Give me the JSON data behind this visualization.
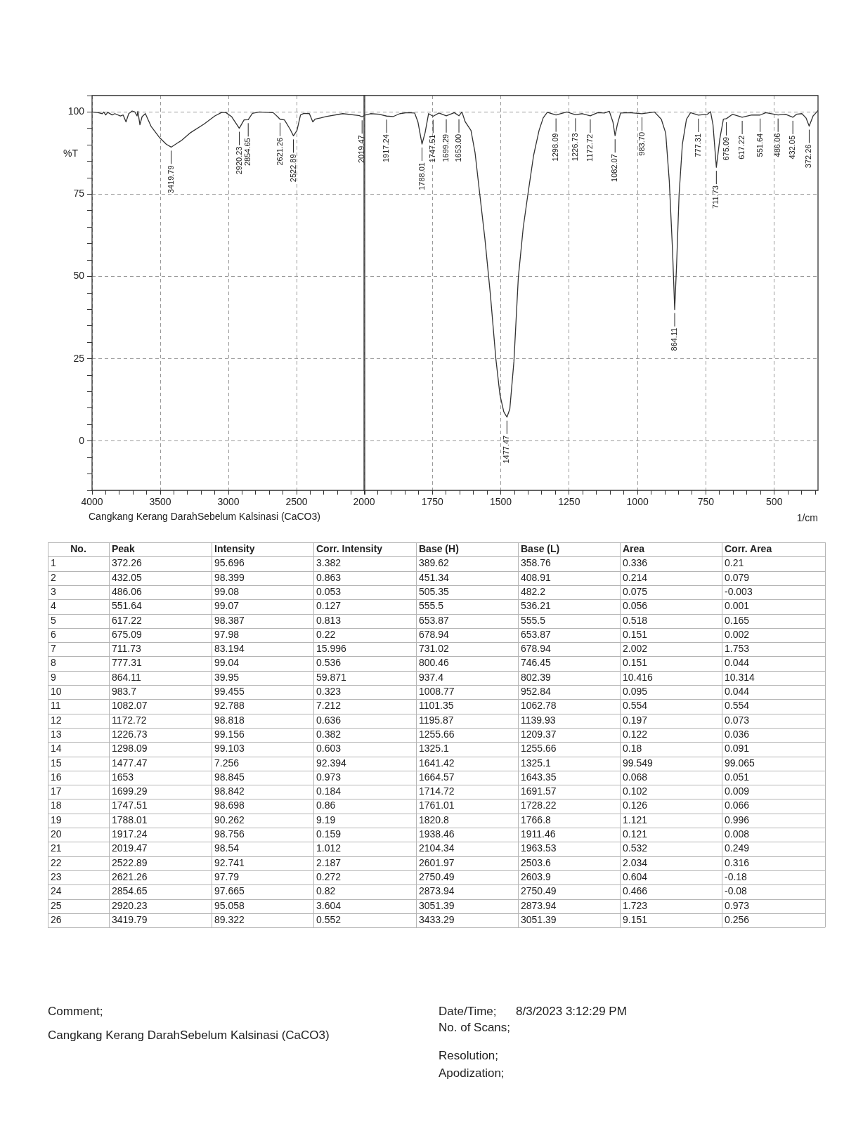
{
  "chart_data": [
    {
      "type": "line",
      "ylabel": "%T",
      "color": "#333333",
      "grid": true,
      "x": [
        4000,
        3955,
        3925,
        3914,
        3900,
        3884,
        3853,
        3833,
        3792,
        3772,
        3751,
        3731,
        3706,
        3686,
        3670,
        3664,
        3649,
        3633,
        3609,
        3568,
        3507,
        3456,
        3419.79,
        3343,
        3282,
        3180,
        3099,
        3048,
        3017,
        2977,
        2920.23,
        2885,
        2854.65,
        2824,
        2773,
        2671,
        2640,
        2621.26,
        2589,
        2548,
        2522.89,
        2497,
        2471,
        2446,
        2406,
        2381,
        2365,
        2349,
        2324,
        2283,
        2161,
        2039,
        2019.47,
        2000
      ],
      "values": [
        100,
        99.8,
        99.5,
        100,
        99.1,
        99.9,
        99.1,
        99.5,
        98.8,
        99.1,
        97,
        99.5,
        100.3,
        100,
        98.8,
        100.2,
        96.1,
        98.6,
        99.5,
        95.7,
        92.3,
        90.2,
        89.322,
        91.4,
        93.6,
        96.3,
        98.8,
        99.9,
        99.8,
        98.6,
        95.058,
        97.6,
        97.665,
        99.6,
        100,
        99.8,
        98.6,
        97.79,
        97.6,
        94.8,
        92.741,
        94.4,
        99.1,
        99.6,
        99.5,
        97,
        97.8,
        98,
        98.2,
        98.6,
        99.5,
        98.9,
        98.54,
        99
      ],
      "xlim": [
        4000,
        2000
      ],
      "xticks": [
        4000,
        {
          "value": 3900,
          "label": null
        },
        {
          "value": 3800,
          "label": null
        },
        {
          "value": 3700,
          "label": null
        },
        {
          "value": 3600,
          "label": null
        },
        3500,
        {
          "value": 3400,
          "label": null
        },
        {
          "value": 3300,
          "label": null
        },
        {
          "value": 3200,
          "label": null
        },
        {
          "value": 3100,
          "label": null
        },
        3000,
        {
          "value": 2900,
          "label": null
        },
        {
          "value": 2800,
          "label": null
        },
        {
          "value": 2700,
          "label": null
        },
        {
          "value": 2600,
          "label": null
        },
        2500,
        {
          "value": 2400,
          "label": null
        },
        {
          "value": 2300,
          "label": null
        },
        {
          "value": 2200,
          "label": null
        },
        {
          "value": 2100,
          "label": null
        },
        {
          "value": 2000,
          "label": null
        }
      ],
      "ylim": [
        -15,
        105
      ],
      "yticks": [
        {
          "value": -15,
          "label": null
        },
        {
          "value": -10,
          "label": null
        },
        {
          "value": -5,
          "label": null
        },
        0,
        {
          "value": 5,
          "label": null
        },
        {
          "value": 10,
          "label": null
        },
        {
          "value": 15,
          "label": null
        },
        {
          "value": 20,
          "label": null
        },
        25,
        {
          "value": 30,
          "label": null
        },
        {
          "value": 35,
          "label": null
        },
        {
          "value": 40,
          "label": null
        },
        {
          "value": 45,
          "label": null
        },
        50,
        {
          "value": 55,
          "label": null
        },
        {
          "value": 60,
          "label": null
        },
        {
          "value": 65,
          "label": null
        },
        {
          "value": 70,
          "label": null
        },
        75,
        {
          "value": 80,
          "label": null
        },
        {
          "value": 85,
          "label": null
        },
        {
          "value": 90,
          "label": null
        },
        {
          "value": 95,
          "label": null
        },
        100,
        {
          "value": 105,
          "label": null
        }
      ],
      "annotations": [
        "Cangkang Kerang DarahSebelum Kalsinasi (CaCO3)",
        {
          "text": "3419.79",
          "x": 3419.79,
          "y": 89.322
        },
        {
          "text": "2920.23",
          "x": 2920.23,
          "y": 95.058
        },
        {
          "text": "2854.65",
          "x": 2854.65,
          "y": 97.665
        },
        {
          "text": "2621.26",
          "x": 2621.26,
          "y": 97.79
        },
        {
          "text": "2522.89",
          "x": 2522.89,
          "y": 92.741
        },
        {
          "text": "2019.47",
          "x": 2019.47,
          "y": 98.54
        }
      ]
    },
    {
      "type": "line",
      "xlabel": "1/cm",
      "color": "#333333",
      "grid": true,
      "tick_labels": "x",
      "x": [
        2000,
        1976,
        1945,
        1917.24,
        1894,
        1869,
        1843,
        1815,
        1803,
        1788.01,
        1777,
        1764,
        1747.51,
        1726,
        1699.29,
        1670,
        1653,
        1642,
        1630,
        1609,
        1594,
        1579,
        1558,
        1538,
        1518,
        1503,
        1489,
        1477.47,
        1467,
        1452,
        1436,
        1418,
        1401,
        1380,
        1360,
        1345,
        1330,
        1298.09,
        1258,
        1226.73,
        1202,
        1172.72,
        1146,
        1121,
        1103,
        1090,
        1082.07,
        1074,
        1062,
        1030,
        983.7,
        938,
        913,
        897,
        884,
        872,
        864.11,
        857,
        848,
        836,
        821,
        806,
        777.31,
        745,
        733,
        724,
        711.73,
        699,
        686,
        675.09,
        653,
        617.22,
        582,
        551.64,
        531,
        486.06,
        459,
        432.05,
        419,
        399,
        384,
        372.26,
        358,
        348,
        340
      ],
      "values": [
        99,
        99.5,
        99.3,
        98.756,
        98.6,
        99.5,
        99.8,
        99.7,
        97,
        90.262,
        93.6,
        99.5,
        98.698,
        99.7,
        98.842,
        99.8,
        98.845,
        100,
        97,
        94.4,
        87.6,
        76.6,
        61.4,
        44.5,
        25,
        14,
        8.9,
        7.256,
        9.7,
        24.1,
        49.5,
        64.8,
        74.9,
        86.8,
        94.4,
        98.2,
        99.9,
        99.103,
        100,
        99.156,
        99.5,
        98.818,
        99.8,
        99.7,
        100.2,
        97,
        92.788,
        96.1,
        99.7,
        99.8,
        99.455,
        100,
        97.8,
        93.6,
        79.2,
        58,
        39.95,
        53.8,
        74.9,
        90.2,
        97.8,
        99.8,
        99.04,
        99.3,
        100.1,
        96.1,
        83.194,
        91.9,
        97.8,
        97.98,
        99.3,
        98.387,
        99.1,
        99.07,
        99.8,
        99.08,
        99.3,
        98.399,
        99.3,
        99.5,
        98.2,
        95.696,
        98.8,
        99.7,
        100.5
      ],
      "xlim": [
        2000,
        340
      ],
      "xticks": [
        2000,
        {
          "value": 1950,
          "label": null
        },
        {
          "value": 1900,
          "label": null
        },
        {
          "value": 1850,
          "label": null
        },
        {
          "value": 1800,
          "label": null
        },
        1750,
        {
          "value": 1700,
          "label": null
        },
        {
          "value": 1650,
          "label": null
        },
        {
          "value": 1600,
          "label": null
        },
        {
          "value": 1550,
          "label": null
        },
        1500,
        {
          "value": 1450,
          "label": null
        },
        {
          "value": 1400,
          "label": null
        },
        {
          "value": 1350,
          "label": null
        },
        {
          "value": 1300,
          "label": null
        },
        1250,
        {
          "value": 1200,
          "label": null
        },
        {
          "value": 1150,
          "label": null
        },
        {
          "value": 1100,
          "label": null
        },
        {
          "value": 1050,
          "label": null
        },
        1000,
        {
          "value": 950,
          "label": null
        },
        {
          "value": 900,
          "label": null
        },
        {
          "value": 850,
          "label": null
        },
        {
          "value": 800,
          "label": null
        },
        750,
        {
          "value": 700,
          "label": null
        },
        {
          "value": 650,
          "label": null
        },
        {
          "value": 600,
          "label": null
        },
        {
          "value": 550,
          "label": null
        },
        500,
        {
          "value": 450,
          "label": null
        },
        {
          "value": 400,
          "label": null
        },
        {
          "value": 350,
          "label": null
        }
      ],
      "ylim": [
        -15,
        105
      ],
      "yticks": [
        0,
        25,
        50,
        75,
        100
      ],
      "annotations": [
        {
          "text": "1917.24",
          "x": 1917.24,
          "y": 98.756
        },
        {
          "text": "1788.01",
          "x": 1788.01,
          "y": 90.262
        },
        {
          "text": "1747.51",
          "x": 1747.51,
          "y": 98.698
        },
        {
          "text": "1699.29",
          "x": 1699.29,
          "y": 98.842
        },
        {
          "text": "1653.00",
          "x": 1653,
          "y": 98.845
        },
        {
          "text": "1477.47",
          "x": 1477.47,
          "y": 7.256
        },
        {
          "text": "1298.09",
          "x": 1298.09,
          "y": 99.103
        },
        {
          "text": "1226.73",
          "x": 1226.73,
          "y": 99.156
        },
        {
          "text": "1172.72",
          "x": 1172.72,
          "y": 98.818
        },
        {
          "text": "1082.07",
          "x": 1082.07,
          "y": 92.788
        },
        {
          "text": "983.70",
          "x": 983.7,
          "y": 99.455
        },
        {
          "text": "864.11",
          "x": 864.11,
          "y": 39.95
        },
        {
          "text": "777.31",
          "x": 777.31,
          "y": 99.04
        },
        {
          "text": "711.73",
          "x": 711.73,
          "y": 83.194
        },
        {
          "text": "675.09",
          "x": 675.09,
          "y": 97.98
        },
        {
          "text": "617.22",
          "x": 617.22,
          "y": 98.387
        },
        {
          "text": "551.64",
          "x": 551.64,
          "y": 99.07
        },
        {
          "text": "486.06",
          "x": 486.06,
          "y": 99.08
        },
        {
          "text": "432.05",
          "x": 432.05,
          "y": 98.399
        },
        {
          "text": "372.26",
          "x": 372.26,
          "y": 95.696
        }
      ]
    },
    {
      "type": "heatmap",
      "ylabel": "No.",
      "categories": [
        "Peak",
        "Intensity",
        "Corr. Intensity",
        "Base (H)",
        "Base (L)",
        "Area",
        "Corr. Area"
      ],
      "y_categories": [
        "1",
        "2",
        "3",
        "4",
        "5",
        "6",
        "7",
        "8",
        "9",
        "10",
        "11",
        "12",
        "13",
        "14",
        "15",
        "16",
        "17",
        "18",
        "19",
        "20",
        "21",
        "22",
        "23",
        "24",
        "25",
        "26"
      ],
      "data_labels": true,
      "cells": [
        [
          372.26,
          95.696,
          3.382,
          389.62,
          358.76,
          0.336,
          0.21
        ],
        [
          432.05,
          98.399,
          0.863,
          451.34,
          408.91,
          0.214,
          0.079
        ],
        [
          486.06,
          99.08,
          0.053,
          505.35,
          482.2,
          0.075,
          -0.003
        ],
        [
          551.64,
          99.07,
          0.127,
          555.5,
          536.21,
          0.056,
          0.001
        ],
        [
          617.22,
          98.387,
          0.813,
          653.87,
          555.5,
          0.518,
          0.165
        ],
        [
          675.09,
          97.98,
          0.22,
          678.94,
          653.87,
          0.151,
          0.002
        ],
        [
          711.73,
          83.194,
          15.996,
          731.02,
          678.94,
          2.002,
          1.753
        ],
        [
          777.31,
          99.04,
          0.536,
          800.46,
          746.45,
          0.151,
          0.044
        ],
        [
          864.11,
          39.95,
          59.871,
          937.4,
          802.39,
          10.416,
          10.314
        ],
        [
          983.7,
          99.455,
          0.323,
          1008.77,
          952.84,
          0.095,
          0.044
        ],
        [
          1082.07,
          92.788,
          7.212,
          1101.35,
          1062.78,
          0.554,
          0.554
        ],
        [
          1172.72,
          98.818,
          0.636,
          1195.87,
          1139.93,
          0.197,
          0.073
        ],
        [
          1226.73,
          99.156,
          0.382,
          1255.66,
          1209.37,
          0.122,
          0.036
        ],
        [
          1298.09,
          99.103,
          0.603,
          1325.1,
          1255.66,
          0.18,
          0.091
        ],
        [
          1477.47,
          7.256,
          92.394,
          1641.42,
          1325.1,
          99.549,
          99.065
        ],
        [
          1653,
          98.845,
          0.973,
          1664.57,
          1643.35,
          0.068,
          0.051
        ],
        [
          1699.29,
          98.842,
          0.184,
          1714.72,
          1691.57,
          0.102,
          0.009
        ],
        [
          1747.51,
          98.698,
          0.86,
          1761.01,
          1728.22,
          0.126,
          0.066
        ],
        [
          1788.01,
          90.262,
          9.19,
          1820.8,
          1766.8,
          1.121,
          0.996
        ],
        [
          1917.24,
          98.756,
          0.159,
          1938.46,
          1911.46,
          0.121,
          0.008
        ],
        [
          2019.47,
          98.54,
          1.012,
          2104.34,
          1963.53,
          0.532,
          0.249
        ],
        [
          2522.89,
          92.741,
          2.187,
          2601.97,
          2503.6,
          2.034,
          0.316
        ],
        [
          2621.26,
          97.79,
          0.272,
          2750.49,
          2603.9,
          0.604,
          -0.18
        ],
        [
          2854.65,
          97.665,
          0.82,
          2873.94,
          2750.49,
          0.466,
          -0.08
        ],
        [
          2920.23,
          95.058,
          3.604,
          3051.39,
          2873.94,
          1.723,
          0.973
        ],
        [
          3419.79,
          89.322,
          0.552,
          3433.29,
          3051.39,
          9.151,
          0.256
        ]
      ],
      "annotations": [
        "Comment;",
        "Cangkang Kerang DarahSebelum Kalsinasi (CaCO3)",
        "Date/Time;",
        "8/3/2023 3:12:29 PM",
        "No. of Scans;",
        "Resolution;",
        "Apodization;"
      ]
    }
  ]
}
